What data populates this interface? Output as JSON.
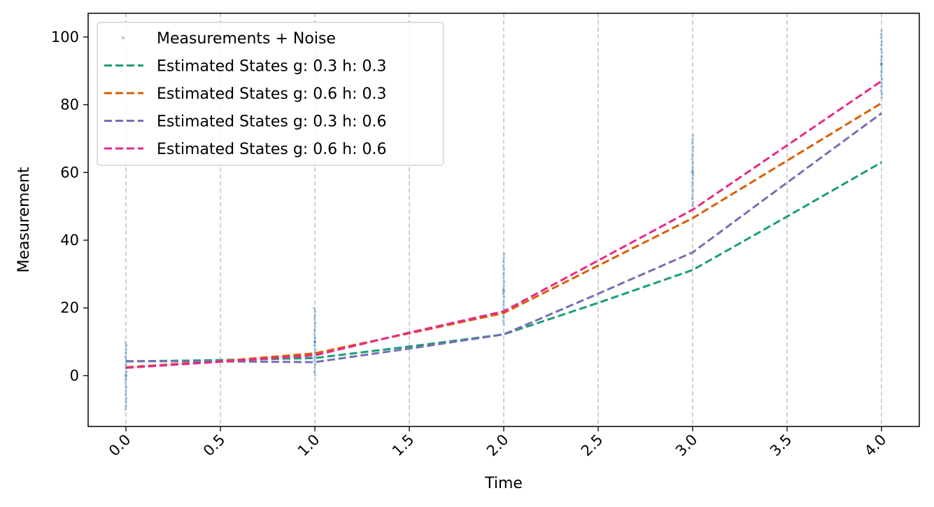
{
  "chart_data": {
    "type": "line",
    "xlabel": "Time",
    "ylabel": "Measurement",
    "xlim": [
      -0.2,
      4.2
    ],
    "ylim": [
      -15,
      107
    ],
    "x_ticks": [
      0.0,
      0.5,
      1.0,
      1.5,
      2.0,
      2.5,
      3.0,
      3.5,
      4.0
    ],
    "x_tick_labels": [
      "0.0",
      "0.5",
      "1.0",
      "1.5",
      "2.0",
      "2.5",
      "3.0",
      "3.5",
      "4.0"
    ],
    "y_ticks": [
      0,
      20,
      40,
      60,
      80,
      100
    ],
    "y_tick_labels": [
      "0",
      "20",
      "40",
      "60",
      "80",
      "100"
    ],
    "x_tick_rotation": 45,
    "grid": "vertical dashed",
    "legend_placement": "top-left",
    "measurements": {
      "name": "Measurements + Noise",
      "color": "#1f77b4",
      "clusters": [
        {
          "x": 0,
          "ymin": -10,
          "ymax": 10,
          "center": 0
        },
        {
          "x": 1,
          "ymin": 0,
          "ymax": 20,
          "center": 10
        },
        {
          "x": 2,
          "ymin": 15,
          "ymax": 36,
          "center": 25
        },
        {
          "x": 3,
          "ymin": 50,
          "ymax": 71,
          "center": 60
        },
        {
          "x": 4,
          "ymin": 82,
          "ymax": 102,
          "center": 92
        }
      ]
    },
    "x": [
      0.0,
      0.5,
      1.0,
      1.5,
      2.0,
      2.5,
      3.0,
      3.5,
      4.0
    ],
    "series": [
      {
        "name": "Estimated States g: 0.3 h: 0.3",
        "color": "#1b9e77",
        "values": [
          4.2,
          4.6,
          5.2,
          8.6,
          12.2,
          21.5,
          31.2,
          47.0,
          63.0
        ]
      },
      {
        "name": "Estimated States g: 0.6 h: 0.3",
        "color": "#d95f02",
        "values": [
          2.5,
          4.3,
          6.6,
          12.5,
          18.5,
          32.5,
          46.5,
          63.5,
          80.5
        ]
      },
      {
        "name": "Estimated States g: 0.3 h: 0.6",
        "color": "#7570b3",
        "values": [
          4.3,
          4.2,
          4.0,
          8.0,
          12.2,
          24.2,
          36.4,
          57.0,
          77.5
        ]
      },
      {
        "name": "Estimated States g: 0.6 h: 0.6",
        "color": "#e7298a",
        "values": [
          2.3,
          4.1,
          6.0,
          12.7,
          19.0,
          34.0,
          49.0,
          68.0,
          87.0
        ]
      }
    ]
  }
}
